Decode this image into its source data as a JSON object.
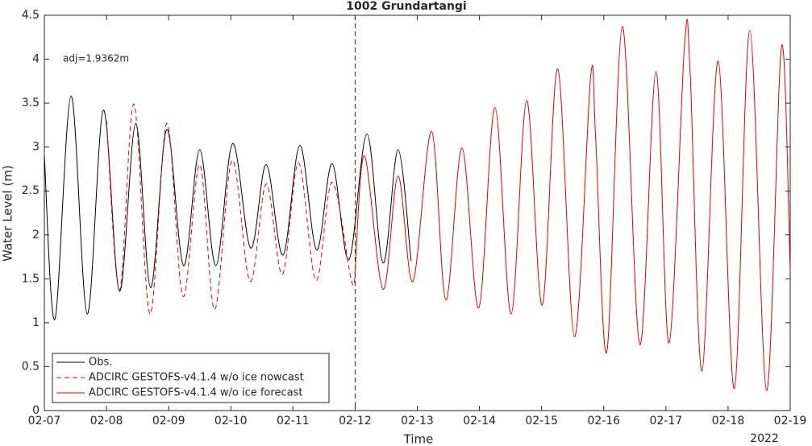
{
  "chart_data": {
    "type": "line",
    "title": "1002 Grundartangi",
    "x_label": "Time",
    "y_label": "Water Level (m)",
    "x_year_label": "2022",
    "annotation": "adj=1.9362m",
    "xlim": [
      7,
      19
    ],
    "ylim": [
      0,
      4.5
    ],
    "xticks": [
      {
        "value": 7,
        "label": "02-07"
      },
      {
        "value": 8,
        "label": "02-08"
      },
      {
        "value": 9,
        "label": "02-09"
      },
      {
        "value": 10,
        "label": "02-10"
      },
      {
        "value": 11,
        "label": "02-11"
      },
      {
        "value": 12,
        "label": "02-12"
      },
      {
        "value": 13,
        "label": "02-13"
      },
      {
        "value": 14,
        "label": "02-14"
      },
      {
        "value": 15,
        "label": "02-15"
      },
      {
        "value": 16,
        "label": "02-16"
      },
      {
        "value": 17,
        "label": "02-17"
      },
      {
        "value": 18,
        "label": "02-18"
      },
      {
        "value": 19,
        "label": "02-19"
      }
    ],
    "yticks": [
      0,
      0.5,
      1,
      1.5,
      2,
      2.5,
      3,
      3.5,
      4,
      4.5
    ],
    "divider_x": 12,
    "legend": "lower left",
    "series": [
      {
        "name": "Obs.",
        "color": "#000000",
        "dash": false,
        "x": [
          7.0,
          7.17,
          7.43,
          7.69,
          7.95,
          8.21,
          8.47,
          8.71,
          8.97,
          9.24,
          9.5,
          9.76,
          10.03,
          10.32,
          10.57,
          10.84,
          11.11,
          11.38,
          11.63,
          11.9,
          12.19,
          12.45,
          12.69,
          12.9
        ],
        "values": [
          2.9,
          1.04,
          3.58,
          1.1,
          3.42,
          1.36,
          3.27,
          1.4,
          3.2,
          1.65,
          2.97,
          1.65,
          3.04,
          1.85,
          2.8,
          1.77,
          3.02,
          1.83,
          2.81,
          1.72,
          3.15,
          1.68,
          2.97,
          1.7
        ]
      },
      {
        "name": "ADCIRC GESTOFS-v4.1.4 w/o ice nowcast",
        "color": "#e00000",
        "dash": true,
        "x": [
          8.0,
          8.21,
          8.44,
          8.7,
          8.97,
          9.23,
          9.5,
          9.74,
          10.02,
          10.31,
          10.57,
          10.83,
          11.09,
          11.37,
          11.63,
          11.94,
          12.0
        ],
        "values": [
          3.3,
          1.37,
          3.49,
          1.1,
          3.27,
          1.3,
          2.8,
          1.15,
          2.85,
          1.47,
          2.58,
          1.55,
          2.82,
          1.48,
          2.6,
          1.48,
          1.6
        ]
      },
      {
        "name": "ADCIRC GESTOFS-v4.1.4 w/o ice forecast",
        "color": "#e00000",
        "dash": false,
        "x": [
          12.0,
          12.15,
          12.45,
          12.69,
          12.93,
          13.23,
          13.46,
          13.72,
          13.99,
          14.25,
          14.51,
          14.76,
          15.01,
          15.26,
          15.53,
          15.79,
          15.87,
          16.05,
          16.3,
          16.58,
          16.84,
          17.05,
          17.3,
          17.39,
          17.58,
          17.84,
          18.1,
          18.35,
          18.62,
          18.86,
          19.0
        ],
        "values": [
          1.6,
          2.9,
          1.38,
          2.67,
          1.47,
          3.18,
          1.26,
          2.99,
          1.17,
          3.45,
          1.1,
          3.53,
          1.2,
          3.89,
          0.84,
          3.81,
          3.1,
          0.67,
          4.37,
          0.75,
          3.86,
          0.77,
          4.17,
          3.85,
          0.45,
          3.98,
          0.25,
          4.33,
          0.23,
          4.15,
          1.6
        ]
      }
    ]
  }
}
